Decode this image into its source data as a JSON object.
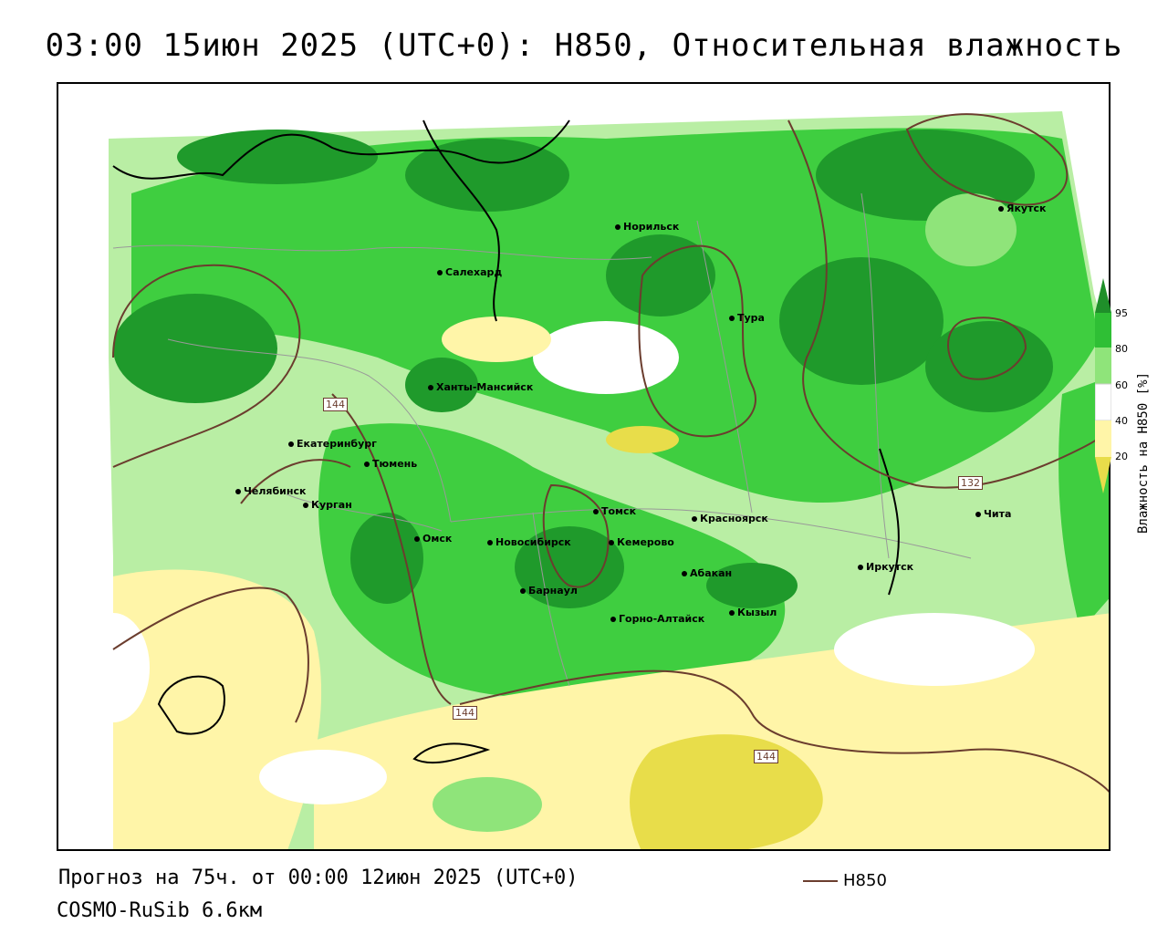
{
  "title": "03:00 15июн 2025 (UTC+0): H850, Относительная влажность",
  "footer": {
    "forecast": "Прогноз на 75ч. от 00:00 12июн 2025 (UTC+0)",
    "model": "COSMO-RuSib 6.6км",
    "legend_label": "H850"
  },
  "colorbar": {
    "title": "Влажность на H850 [%]",
    "ticks": [
      "95",
      "80",
      "60",
      "40",
      "20"
    ],
    "colors": [
      "#1f8f2a",
      "#2fbf35",
      "#8fe47a",
      "#ffffff",
      "#fff5a8",
      "#e8dd4a"
    ]
  },
  "contour_labels": [
    "144",
    "144",
    "144",
    "132"
  ],
  "cities": [
    {
      "name": "Норильск"
    },
    {
      "name": "Якутск"
    },
    {
      "name": "Салехард"
    },
    {
      "name": "Тура"
    },
    {
      "name": "Ханты-Мансийск"
    },
    {
      "name": "Екатеринбург"
    },
    {
      "name": "Тюмень"
    },
    {
      "name": "Челябинск"
    },
    {
      "name": "Курган"
    },
    {
      "name": "Томск"
    },
    {
      "name": "Красноярск"
    },
    {
      "name": "Чита"
    },
    {
      "name": "Омск"
    },
    {
      "name": "Новосибирск"
    },
    {
      "name": "Кемерово"
    },
    {
      "name": "Иркутск"
    },
    {
      "name": "Абакан"
    },
    {
      "name": "Барнаул"
    },
    {
      "name": "Кызыл"
    },
    {
      "name": "Горно-Алтайск"
    }
  ]
}
